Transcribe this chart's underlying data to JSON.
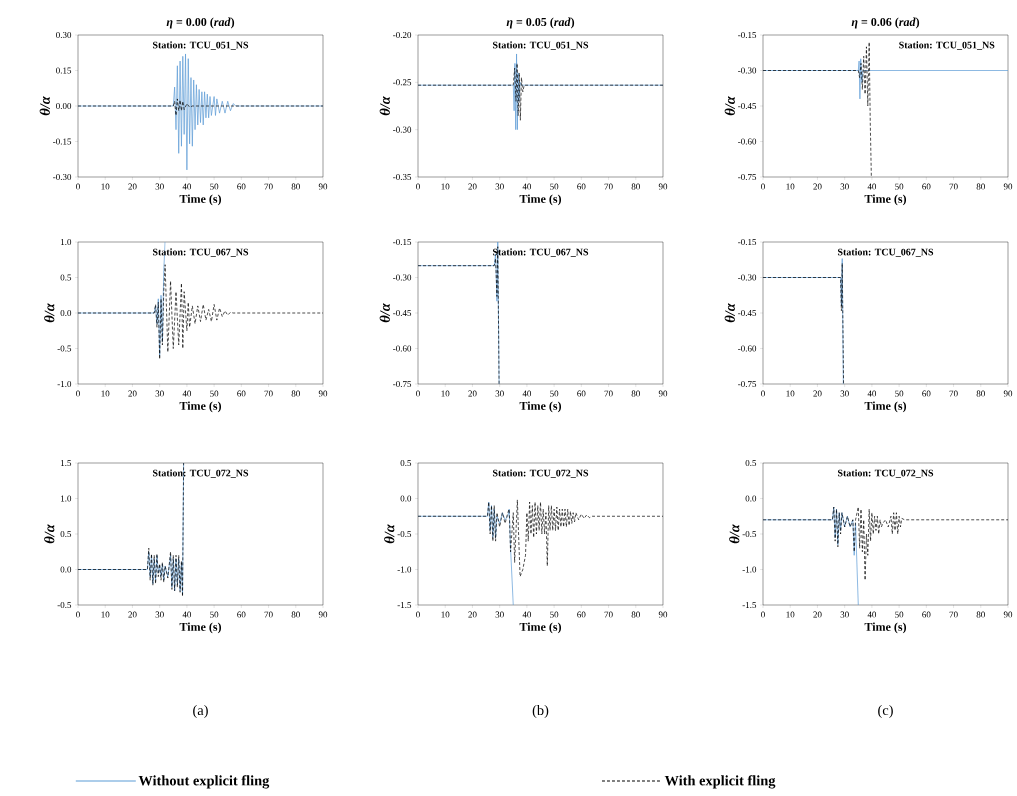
{
  "chart_data": [
    {
      "type": "line",
      "title": "*η* = 0.00 (*rad*)",
      "xlabel": "Time (s)",
      "ylabel": "θ/α",
      "xlim": [
        0,
        90
      ],
      "ylim": [
        -0.3,
        0.3
      ],
      "xticks": [
        0,
        10,
        20,
        30,
        40,
        50,
        60,
        70,
        80,
        90
      ],
      "yticks": [
        {
          "value": -0.3,
          "label": "-0.30"
        },
        {
          "value": -0.15,
          "label": "-0.15"
        },
        {
          "value": 0,
          "label": "0.00"
        },
        {
          "value": 0.15,
          "label": "0.15"
        },
        {
          "value": 0.3,
          "label": "0.30"
        }
      ],
      "annotations": [
        "Station: TCU_051_NS"
      ],
      "series": [
        {
          "color": "#5b9bd5",
          "line_style": "solid",
          "x": [
            0,
            35,
            35.5,
            36,
            36.5,
            37,
            37.5,
            38,
            38.5,
            39,
            39.5,
            40,
            40.5,
            41,
            41.5,
            42,
            42.5,
            43,
            43.5,
            44,
            44.5,
            45,
            45.5,
            46,
            46.5,
            47,
            47.5,
            48,
            48.5,
            49,
            50,
            50.5,
            51,
            52,
            53,
            54,
            55,
            56,
            57,
            58,
            90
          ],
          "values": [
            0,
            0,
            0.08,
            -0.1,
            0.17,
            -0.2,
            0.19,
            -0.17,
            0.21,
            -0.12,
            0.22,
            -0.27,
            0.2,
            -0.16,
            0.12,
            -0.17,
            0.11,
            -0.1,
            0.09,
            -0.08,
            0.07,
            -0.07,
            0.06,
            -0.08,
            0.06,
            -0.05,
            0.05,
            -0.05,
            0.04,
            -0.04,
            0.04,
            -0.04,
            0.03,
            -0.03,
            0.02,
            -0.03,
            0.02,
            -0.02,
            0.01,
            0,
            0
          ]
        },
        {
          "color": "#000000",
          "line_style": "dashed",
          "x": [
            0,
            35,
            35.5,
            36,
            36.5,
            37,
            37.5,
            38,
            38.5,
            39,
            40,
            41,
            42,
            90
          ],
          "values": [
            0,
            0,
            0.02,
            -0.04,
            0.03,
            -0.02,
            0.025,
            -0.02,
            0.02,
            -0.015,
            0.01,
            -0.005,
            0,
            0
          ]
        }
      ]
    },
    {
      "type": "line",
      "title": "*η* = 0.05 (*rad*)",
      "xlabel": "Time (s)",
      "ylabel": "θ/α",
      "xlim": [
        0,
        90
      ],
      "ylim": [
        -0.35,
        -0.2
      ],
      "xticks": [
        0,
        10,
        20,
        30,
        40,
        50,
        60,
        70,
        80,
        90
      ],
      "yticks": [
        {
          "value": -0.35,
          "label": "-0.35"
        },
        {
          "value": -0.3,
          "label": "-0.30"
        },
        {
          "value": -0.25,
          "label": "-0.25"
        },
        {
          "value": -0.2,
          "label": "-0.20"
        }
      ],
      "annotations": [
        "Station: TCU_051_NS"
      ],
      "series": [
        {
          "color": "#5b9bd5",
          "line_style": "solid",
          "x": [
            0,
            35,
            35.3,
            35.6,
            35.9,
            36.2,
            36.5,
            36.8,
            37.1,
            37.5,
            38,
            90
          ],
          "values": [
            -0.253,
            -0.253,
            -0.28,
            -0.23,
            -0.3,
            -0.22,
            -0.3,
            -0.24,
            -0.27,
            -0.25,
            -0.253,
            -0.253
          ]
        },
        {
          "color": "#000000",
          "line_style": "dashed",
          "x": [
            0,
            35,
            35.5,
            36,
            36.4,
            36.8,
            37.2,
            37.6,
            38,
            38.5,
            39,
            90
          ],
          "values": [
            -0.253,
            -0.253,
            -0.235,
            -0.27,
            -0.23,
            -0.285,
            -0.24,
            -0.29,
            -0.245,
            -0.26,
            -0.253,
            -0.253
          ]
        }
      ]
    },
    {
      "type": "line",
      "title": "*η* = 0.06 (*rad*)",
      "xlabel": "Time (s)",
      "ylabel": "θ/α",
      "xlim": [
        0,
        90
      ],
      "ylim": [
        -0.75,
        -0.15
      ],
      "xticks": [
        0,
        10,
        20,
        30,
        40,
        50,
        60,
        70,
        80,
        90
      ],
      "yticks": [
        {
          "value": -0.75,
          "label": "-0.75"
        },
        {
          "value": -0.6,
          "label": "-0.60"
        },
        {
          "value": -0.45,
          "label": "-0.45"
        },
        {
          "value": -0.3,
          "label": "-0.30"
        },
        {
          "value": -0.15,
          "label": "-0.15"
        }
      ],
      "annotations": [
        "Station: TCU_051_NS"
      ],
      "series": [
        {
          "color": "#5b9bd5",
          "line_style": "solid",
          "x": [
            0,
            35,
            35.3,
            35.6,
            35.9,
            36.3,
            36.7,
            37,
            90
          ],
          "values": [
            -0.3,
            -0.3,
            -0.26,
            -0.42,
            -0.25,
            -0.35,
            -0.3,
            -0.3,
            -0.3
          ]
        },
        {
          "color": "#000000",
          "line_style": "dashed",
          "x": [
            0,
            35,
            35.5,
            36,
            36.5,
            37,
            37.5,
            38,
            38.5,
            39,
            39.4,
            39.8
          ],
          "values": [
            -0.3,
            -0.3,
            -0.33,
            -0.27,
            -0.38,
            -0.24,
            -0.4,
            -0.2,
            -0.45,
            -0.18,
            -0.52,
            -0.75
          ]
        }
      ]
    },
    {
      "type": "line",
      "xlabel": "Time (s)",
      "ylabel": "θ/α",
      "xlim": [
        0,
        90
      ],
      "ylim": [
        -1,
        1
      ],
      "xticks": [
        0,
        10,
        20,
        30,
        40,
        50,
        60,
        70,
        80,
        90
      ],
      "yticks": [
        {
          "value": -1,
          "label": "-1.0"
        },
        {
          "value": -0.5,
          "label": "-0.5"
        },
        {
          "value": 0,
          "label": "0.0"
        },
        {
          "value": 0.5,
          "label": "0.5"
        },
        {
          "value": 1,
          "label": "1.0"
        }
      ],
      "annotations": [
        "Station: TCU_067_NS"
      ],
      "series": [
        {
          "color": "#5b9bd5",
          "line_style": "solid",
          "x": [
            0,
            28,
            28.5,
            29,
            29.5,
            30,
            30.5,
            31,
            31.5,
            32
          ],
          "values": [
            0,
            0,
            0.1,
            -0.15,
            0.2,
            -0.6,
            0.25,
            -0.4,
            0.6,
            1
          ]
        },
        {
          "color": "#000000",
          "line_style": "dashed",
          "x": [
            0,
            28,
            28.5,
            29,
            29.5,
            30,
            30.5,
            31,
            31.5,
            32,
            33,
            34,
            35,
            36,
            37,
            38,
            38.5,
            39,
            40,
            40.5,
            41,
            42,
            43,
            44,
            45,
            46,
            47,
            48,
            49,
            50,
            51,
            52,
            53,
            54,
            55,
            56,
            57,
            90
          ],
          "values": [
            0,
            0,
            0.12,
            -0.2,
            0.15,
            -0.65,
            0.2,
            -0.45,
            0.3,
            0.68,
            -0.55,
            0.45,
            -0.5,
            0.3,
            -0.45,
            0.42,
            -0.5,
            0.3,
            -0.25,
            0.15,
            -0.2,
            0.1,
            -0.15,
            0.1,
            -0.12,
            0.12,
            -0.1,
            0.05,
            -0.12,
            0.12,
            -0.1,
            0.07,
            -0.05,
            0.03,
            -0.03,
            0.01,
            0,
            0
          ]
        }
      ]
    },
    {
      "type": "line",
      "xlabel": "Time (s)",
      "ylabel": "θ/α",
      "xlim": [
        0,
        90
      ],
      "ylim": [
        -0.75,
        -0.15
      ],
      "xticks": [
        0,
        10,
        20,
        30,
        40,
        50,
        60,
        70,
        80,
        90
      ],
      "yticks": [
        {
          "value": -0.75,
          "label": "-0.75"
        },
        {
          "value": -0.6,
          "label": "-0.60"
        },
        {
          "value": -0.45,
          "label": "-0.45"
        },
        {
          "value": -0.3,
          "label": "-0.30"
        },
        {
          "value": -0.15,
          "label": "-0.15"
        }
      ],
      "annotations": [
        "Station: TCU_067_NS"
      ],
      "series": [
        {
          "color": "#5b9bd5",
          "line_style": "solid",
          "x": [
            0,
            28,
            28.5,
            29,
            29.3,
            29.8
          ],
          "values": [
            -0.25,
            -0.25,
            -0.2,
            -0.4,
            -0.15,
            -0.75
          ]
        },
        {
          "color": "#000000",
          "line_style": "dashed",
          "x": [
            0,
            28,
            28.5,
            29,
            29.3,
            29.8
          ],
          "values": [
            -0.25,
            -0.25,
            -0.22,
            -0.38,
            -0.17,
            -0.75
          ]
        }
      ]
    },
    {
      "type": "line",
      "xlabel": "Time (s)",
      "ylabel": "θ/α",
      "xlim": [
        0,
        90
      ],
      "ylim": [
        -0.75,
        -0.15
      ],
      "xticks": [
        0,
        10,
        20,
        30,
        40,
        50,
        60,
        70,
        80,
        90
      ],
      "yticks": [
        {
          "value": -0.75,
          "label": "-0.75"
        },
        {
          "value": -0.6,
          "label": "-0.60"
        },
        {
          "value": -0.45,
          "label": "-0.45"
        },
        {
          "value": -0.3,
          "label": "-0.30"
        },
        {
          "value": -0.15,
          "label": "-0.15"
        }
      ],
      "annotations": [
        "Station: TCU_067_NS"
      ],
      "series": [
        {
          "color": "#5b9bd5",
          "line_style": "solid",
          "x": [
            0,
            28.5,
            28.8,
            29.1,
            29.5
          ],
          "values": [
            -0.3,
            -0.3,
            -0.42,
            -0.22,
            -0.75
          ]
        },
        {
          "color": "#000000",
          "line_style": "dashed",
          "x": [
            0,
            28.5,
            28.8,
            29.1,
            29.6
          ],
          "values": [
            -0.3,
            -0.3,
            -0.44,
            -0.24,
            -0.75
          ]
        }
      ]
    },
    {
      "type": "line",
      "xlabel": "Time (s)",
      "ylabel": "θ/α",
      "xlim": [
        0,
        90
      ],
      "ylim": [
        -0.5,
        1.5
      ],
      "xticks": [
        0,
        10,
        20,
        30,
        40,
        50,
        60,
        70,
        80,
        90
      ],
      "yticks": [
        {
          "value": -0.5,
          "label": "-0.5"
        },
        {
          "value": 0,
          "label": "0.0"
        },
        {
          "value": 0.5,
          "label": "0.5"
        },
        {
          "value": 1,
          "label": "1.0"
        },
        {
          "value": 1.5,
          "label": "1.5"
        }
      ],
      "annotations": [
        "Station: TCU_072_NS",
        "(a)"
      ],
      "series": [
        {
          "color": "#5b9bd5",
          "line_style": "solid",
          "x": [
            0,
            25.5,
            26,
            26.5,
            27,
            27.5,
            28,
            28.5,
            29,
            29.5,
            30,
            30.5,
            31,
            31.5,
            32,
            33,
            34,
            34.5,
            35,
            35.5,
            36,
            36.5,
            37,
            37.5,
            38,
            38.4,
            38.8
          ],
          "values": [
            0,
            0,
            0.25,
            -0.1,
            0.2,
            -0.2,
            0.15,
            -0.15,
            0.2,
            -0.05,
            0.05,
            -0.1,
            0.08,
            -0.15,
            0.05,
            -0.1,
            0.2,
            -0.25,
            0.15,
            -0.3,
            0.15,
            -0.2,
            0.15,
            -0.3,
            0.1,
            -0.35,
            1.5
          ]
        },
        {
          "color": "#000000",
          "line_style": "dashed",
          "x": [
            0,
            25.5,
            26,
            26.5,
            27,
            27.5,
            28,
            28.5,
            29,
            29.5,
            30,
            30.5,
            31,
            31.5,
            32,
            33,
            34,
            34.5,
            35,
            35.5,
            36,
            36.5,
            37,
            37.5,
            38,
            38.4,
            38.8
          ],
          "values": [
            0,
            0,
            0.3,
            -0.15,
            0.22,
            -0.22,
            0.2,
            -0.2,
            0.22,
            -0.1,
            0.08,
            -0.15,
            0.1,
            -0.18,
            0.05,
            -0.12,
            0.25,
            -0.28,
            0.2,
            -0.3,
            0.2,
            -0.25,
            0.2,
            -0.32,
            0.12,
            -0.38,
            1.5
          ]
        }
      ]
    },
    {
      "type": "line",
      "xlabel": "Time (s)",
      "ylabel": "θ/α",
      "xlim": [
        0,
        90
      ],
      "ylim": [
        -1.5,
        0.5
      ],
      "xticks": [
        0,
        10,
        20,
        30,
        40,
        50,
        60,
        70,
        80,
        90
      ],
      "yticks": [
        {
          "value": -1.5,
          "label": "-1.5"
        },
        {
          "value": -1,
          "label": "-1.0"
        },
        {
          "value": -0.5,
          "label": "-0.5"
        },
        {
          "value": 0,
          "label": "0.0"
        },
        {
          "value": 0.5,
          "label": "0.5"
        }
      ],
      "annotations": [
        "Station: TCU_072_NS",
        "(b)"
      ],
      "legend": "bottom",
      "series": [
        {
          "name": "Without explicit fling",
          "color": "#5b9bd5",
          "line_style": "solid",
          "x": [
            0,
            25.5,
            26,
            26.5,
            27,
            27.5,
            28,
            28.5,
            29,
            30,
            31,
            32,
            33,
            33.5,
            34,
            35
          ],
          "values": [
            -0.25,
            -0.25,
            -0.05,
            -0.45,
            -0.1,
            -0.55,
            -0.15,
            -0.55,
            -0.25,
            -0.35,
            -0.2,
            -0.3,
            -0.25,
            -0.15,
            -0.7,
            -1.5
          ]
        },
        {
          "name": "With explicit fling",
          "color": "#000000",
          "line_style": "dashed",
          "x": [
            0,
            25.5,
            26,
            26.5,
            27,
            27.5,
            28,
            28.5,
            29,
            30,
            31,
            32,
            33,
            33.5,
            34,
            35,
            35.5,
            36.5,
            37.5,
            38.5,
            39.5,
            40,
            40.5,
            41,
            41.5,
            42,
            42.5,
            43,
            43.5,
            44,
            44.5,
            45,
            45.5,
            46,
            46.5,
            47,
            47.5,
            48,
            48.5,
            49,
            49.5,
            50,
            50.5,
            51,
            51.5,
            52,
            52.5,
            53,
            53.5,
            54,
            54.5,
            55,
            55.5,
            56,
            56.5,
            57,
            57.5,
            58,
            59,
            60,
            61,
            62,
            63,
            64,
            90
          ],
          "values": [
            -0.25,
            -0.25,
            -0.05,
            -0.5,
            -0.1,
            -0.6,
            -0.1,
            -0.6,
            -0.2,
            -0.4,
            -0.2,
            -0.35,
            -0.2,
            -0.15,
            -0.75,
            -0.2,
            -0.9,
            -0.02,
            -1.1,
            -1,
            -0.8,
            -0.2,
            -0.6,
            -0.05,
            -0.5,
            -0.1,
            -0.55,
            -0.05,
            -0.5,
            -0.1,
            -0.45,
            -0.05,
            -0.5,
            -0.15,
            -0.5,
            -0.2,
            -0.95,
            -0.1,
            -0.45,
            -0.1,
            -0.45,
            -0.15,
            -0.45,
            -0.12,
            -0.45,
            -0.15,
            -0.4,
            -0.15,
            -0.4,
            -0.15,
            -0.4,
            -0.15,
            -0.38,
            -0.18,
            -0.35,
            -0.2,
            -0.33,
            -0.2,
            -0.3,
            -0.22,
            -0.28,
            -0.23,
            -0.27,
            -0.25,
            -0.25
          ]
        }
      ]
    },
    {
      "type": "line",
      "xlabel": "Time (s)",
      "ylabel": "θ/α",
      "xlim": [
        0,
        90
      ],
      "ylim": [
        -1.5,
        0.5
      ],
      "xticks": [
        0,
        10,
        20,
        30,
        40,
        50,
        60,
        70,
        80,
        90
      ],
      "yticks": [
        {
          "value": -1.5,
          "label": "-1.5"
        },
        {
          "value": -1,
          "label": "-1.0"
        },
        {
          "value": -0.5,
          "label": "-0.5"
        },
        {
          "value": 0,
          "label": "0.0"
        },
        {
          "value": 0.5,
          "label": "0.5"
        }
      ],
      "annotations": [
        "Station: TCU_072_NS",
        "(c)"
      ],
      "series": [
        {
          "color": "#5b9bd5",
          "line_style": "solid",
          "x": [
            0,
            25.5,
            26,
            26.5,
            27,
            27.5,
            28,
            28.5,
            29,
            30,
            31,
            32,
            33,
            33.5,
            34,
            35
          ],
          "values": [
            -0.3,
            -0.3,
            -0.12,
            -0.55,
            -0.15,
            -0.65,
            -0.2,
            -0.45,
            -0.2,
            -0.4,
            -0.25,
            -0.4,
            -0.3,
            -0.8,
            -0.35,
            -1.5
          ]
        },
        {
          "color": "#000000",
          "line_style": "dashed",
          "x": [
            0,
            25.5,
            26,
            26.5,
            27,
            27.5,
            28,
            28.5,
            29,
            30,
            31,
            32,
            33,
            33.5,
            34,
            35,
            35.5,
            36,
            36.5,
            37,
            37.5,
            38,
            38.5,
            39,
            39.5,
            40,
            40.5,
            41,
            41.5,
            42,
            42.5,
            43,
            43.5,
            44,
            45,
            46,
            47,
            47.5,
            48,
            48.5,
            49,
            49.5,
            50,
            50.5,
            51,
            52,
            53,
            90
          ],
          "values": [
            -0.3,
            -0.3,
            -0.12,
            -0.6,
            -0.15,
            -0.68,
            -0.2,
            -0.5,
            -0.2,
            -0.4,
            -0.25,
            -0.4,
            -0.3,
            -0.75,
            -0.3,
            -0.12,
            -0.7,
            -0.15,
            -0.75,
            -0.3,
            -1.15,
            -0.5,
            -0.8,
            -0.15,
            -0.6,
            -0.2,
            -0.5,
            -0.25,
            -0.45,
            -0.25,
            -0.5,
            -0.3,
            -0.4,
            -0.35,
            -0.3,
            -0.4,
            -0.25,
            -0.5,
            -0.2,
            -0.45,
            -0.2,
            -0.5,
            -0.25,
            -0.4,
            -0.28,
            -0.3,
            -0.3,
            -0.3
          ]
        }
      ]
    }
  ]
}
